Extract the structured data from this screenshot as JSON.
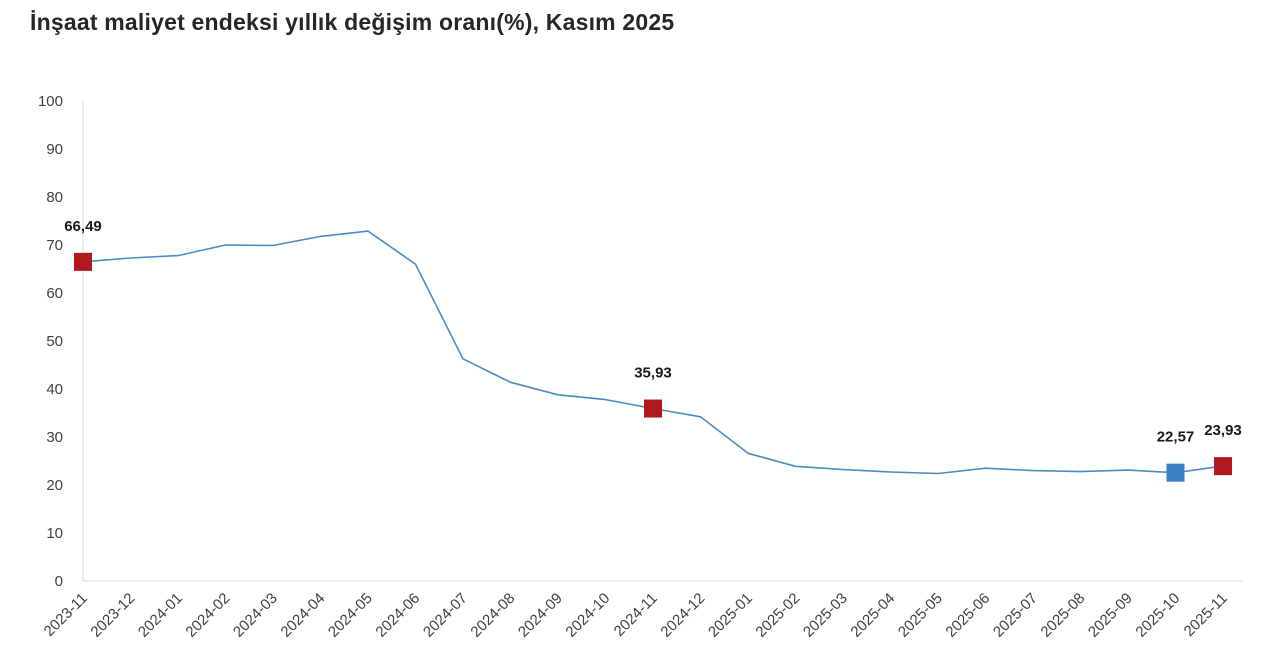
{
  "title": "İnşaat maliyet endeksi yıllık değişim oranı(%), Kasım 2025",
  "chart_data": {
    "type": "line",
    "title": "İnşaat maliyet endeksi yıllık değişim oranı(%), Kasım 2025",
    "xlabel": "",
    "ylabel": "",
    "ylim": [
      0,
      100
    ],
    "yticks": [
      0,
      10,
      20,
      30,
      40,
      50,
      60,
      70,
      80,
      90,
      100
    ],
    "grid": false,
    "legend": "none",
    "line_color": "#4a8cc4",
    "categories": [
      "2023-11",
      "2023-12",
      "2024-01",
      "2024-02",
      "2024-03",
      "2024-04",
      "2024-05",
      "2024-06",
      "2024-07",
      "2024-08",
      "2024-09",
      "2024-10",
      "2024-11",
      "2024-12",
      "2025-01",
      "2025-02",
      "2025-03",
      "2025-04",
      "2025-05",
      "2025-06",
      "2025-07",
      "2025-08",
      "2025-09",
      "2025-10",
      "2025-11"
    ],
    "values": [
      66.49,
      67.3,
      67.8,
      70.0,
      69.9,
      71.8,
      72.9,
      66.0,
      46.3,
      41.4,
      38.8,
      37.8,
      35.93,
      34.2,
      26.6,
      23.9,
      23.2,
      22.7,
      22.4,
      23.5,
      23.0,
      22.8,
      23.1,
      22.57,
      23.93
    ],
    "highlighted_points": [
      {
        "category": "2023-11",
        "value": 66.49,
        "label": "66,49",
        "color": "#b0181e"
      },
      {
        "category": "2024-11",
        "value": 35.93,
        "label": "35,93",
        "color": "#b0181e"
      },
      {
        "category": "2025-10",
        "value": 22.57,
        "label": "22,57",
        "color": "#3a7fc1"
      },
      {
        "category": "2025-11",
        "value": 23.93,
        "label": "23,93",
        "color": "#b0181e"
      }
    ]
  }
}
